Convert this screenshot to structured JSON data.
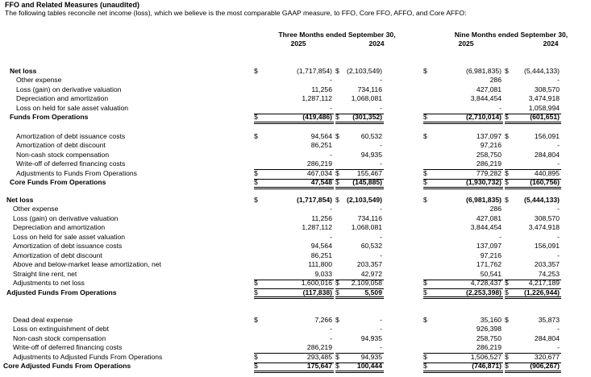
{
  "header": {
    "title": "FFO and Related Measures (unaudited)",
    "subtitle": "The following tables reconcile net income (loss), which we believe is the most comparable GAAP measure, to FFO, Core FFO, AFFO, and Core AFFO:",
    "groups": [
      "Three Months ended September 30,",
      "Nine Months ended September 30,"
    ],
    "years": [
      "2025",
      "2024",
      "2025",
      "2024"
    ]
  },
  "blocks": [
    {
      "rows": [
        {
          "label": "Net loss",
          "kind": "bold",
          "cells": [
            {
              "sign": "$",
              "value": "(1,717,854)"
            },
            {
              "sign": "$",
              "value": "(2,103,549)"
            },
            {
              "sign": "$",
              "value": "(6,981,835)"
            },
            {
              "sign": "$",
              "value": "(5,444,133)"
            }
          ]
        },
        {
          "label": "Other expense",
          "cells": [
            {
              "value": "-"
            },
            {
              "value": "-"
            },
            {
              "value": "286"
            },
            {
              "value": "-"
            }
          ]
        },
        {
          "label": "Loss (gain) on derivative valuation",
          "cells": [
            {
              "value": "11,256"
            },
            {
              "value": "734,116"
            },
            {
              "value": "427,081"
            },
            {
              "value": "308,570"
            }
          ]
        },
        {
          "label": "Depreciation and amortization",
          "cells": [
            {
              "value": "1,287,112"
            },
            {
              "value": "1,068,081"
            },
            {
              "value": "3,844,454"
            },
            {
              "value": "3,474,918"
            }
          ]
        },
        {
          "label": "Loss on held for sale asset valuation",
          "cells": [
            {
              "value": "-"
            },
            {
              "value": "-"
            },
            {
              "value": "-"
            },
            {
              "value": "1,058,994"
            }
          ]
        },
        {
          "label": "Funds From Operations",
          "kind": "total",
          "cells": [
            {
              "sign": "$",
              "value": "(419,486)"
            },
            {
              "sign": "$",
              "value": "(301,352)"
            },
            {
              "sign": "$",
              "value": "(2,710,014)"
            },
            {
              "sign": "$",
              "value": "(601,651)"
            }
          ]
        }
      ]
    },
    {
      "rows": [
        {
          "label": "Amortization of debt issuance costs",
          "cells": [
            {
              "sign": "$",
              "value": "94,564"
            },
            {
              "sign": "$",
              "value": "60,532"
            },
            {
              "sign": "$",
              "value": "137,097"
            },
            {
              "sign": "$",
              "value": "156,091"
            }
          ]
        },
        {
          "label": "Amortization of debt discount",
          "cells": [
            {
              "value": "86,251"
            },
            {
              "value": "-"
            },
            {
              "value": "97,216"
            },
            {
              "value": "-"
            }
          ]
        },
        {
          "label": "Non-cash stock compensation",
          "cells": [
            {
              "value": "-"
            },
            {
              "value": "94,935"
            },
            {
              "value": "258,750"
            },
            {
              "value": "284,804"
            }
          ]
        },
        {
          "label": "Write-off of deferred financing costs",
          "cells": [
            {
              "value": "286,219"
            },
            {
              "value": "-"
            },
            {
              "value": "286,219"
            },
            {
              "value": "-"
            }
          ]
        },
        {
          "label": "Adjustments to Funds From Operations",
          "kind": "sub",
          "cells": [
            {
              "sign": "$",
              "value": "467,034"
            },
            {
              "sign": "$",
              "value": "155,467"
            },
            {
              "sign": "$",
              "value": "779,282"
            },
            {
              "sign": "$",
              "value": "440,895"
            }
          ]
        },
        {
          "label": "Core Funds From Operations",
          "kind": "total",
          "cells": [
            {
              "sign": "$",
              "value": "47,548"
            },
            {
              "sign": "$",
              "value": "(145,885)"
            },
            {
              "sign": "$",
              "value": "(1,930,732)"
            },
            {
              "sign": "$",
              "value": "(160,756)"
            }
          ]
        }
      ]
    },
    {
      "rows": [
        {
          "label": "Net loss",
          "kind": "bold",
          "cells": [
            {
              "sign": "$",
              "value": "(1,717,854)"
            },
            {
              "sign": "$",
              "value": "(2,103,549)"
            },
            {
              "sign": "$",
              "value": "(6,981,835)"
            },
            {
              "sign": "$",
              "value": "(5,444,133)"
            }
          ]
        },
        {
          "label": "Other expense",
          "cells": [
            {
              "value": "-"
            },
            {
              "value": "-"
            },
            {
              "value": "286"
            },
            {
              "value": "-"
            }
          ]
        },
        {
          "label": "Loss (gain) on derivative valuation",
          "cells": [
            {
              "value": "11,256"
            },
            {
              "value": "734,116"
            },
            {
              "value": "427,081"
            },
            {
              "value": "308,570"
            }
          ]
        },
        {
          "label": "Depreciation and amortization",
          "cells": [
            {
              "value": "1,287,112"
            },
            {
              "value": "1,068,081"
            },
            {
              "value": "3,844,454"
            },
            {
              "value": "3,474,918"
            }
          ]
        },
        {
          "label": "Loss on held for sale asset valuation",
          "cells": [
            {
              "value": "-"
            },
            {
              "value": "-"
            },
            {
              "value": "-"
            },
            {
              "value": "-"
            }
          ]
        },
        {
          "label": "Amortization of debt issuance costs",
          "cells": [
            {
              "value": "94,564"
            },
            {
              "value": "60,532"
            },
            {
              "value": "137,097"
            },
            {
              "value": "156,091"
            }
          ]
        },
        {
          "label": "Amortization of debt discount",
          "cells": [
            {
              "value": "86,251"
            },
            {
              "value": "-"
            },
            {
              "value": "97,216"
            },
            {
              "value": "-"
            }
          ]
        },
        {
          "label": "Above and below-market lease amortization, net",
          "cells": [
            {
              "value": "111,800"
            },
            {
              "value": "203,357"
            },
            {
              "value": "171,762"
            },
            {
              "value": "203,357"
            }
          ]
        },
        {
          "label": "Straight line rent, net",
          "cells": [
            {
              "value": "9,033"
            },
            {
              "value": "42,972"
            },
            {
              "value": "50,541"
            },
            {
              "value": "74,253"
            }
          ]
        },
        {
          "label": "Adjustments to net loss",
          "kind": "sub",
          "cells": [
            {
              "sign": "$",
              "value": "1,600,016"
            },
            {
              "sign": "$",
              "value": "2,109,058"
            },
            {
              "sign": "$",
              "value": "4,728,437"
            },
            {
              "sign": "$",
              "value": "4,217,189"
            }
          ]
        },
        {
          "label": "Adjusted Funds From Operations",
          "kind": "total",
          "cells": [
            {
              "sign": "$",
              "value": "(117,838)"
            },
            {
              "sign": "$",
              "value": "5,509"
            },
            {
              "sign": "$",
              "value": "(2,253,398)"
            },
            {
              "sign": "$",
              "value": "(1,226,944)"
            }
          ]
        }
      ]
    },
    {
      "rows": [
        {
          "label": "Dead deal expense",
          "cells": [
            {
              "sign": "$",
              "value": "7,266"
            },
            {
              "sign": "$",
              "value": "-"
            },
            {
              "sign": "$",
              "value": "35,160"
            },
            {
              "sign": "$",
              "value": "35,873"
            }
          ]
        },
        {
          "label": "Loss on extinguishment of debt",
          "cells": [
            {
              "value": "-"
            },
            {
              "value": "-"
            },
            {
              "value": "926,398"
            },
            {
              "value": "-"
            }
          ]
        },
        {
          "label": "Non-cash stock compensation",
          "cells": [
            {
              "value": "-"
            },
            {
              "value": "94,935"
            },
            {
              "value": "258,750"
            },
            {
              "value": "284,804"
            }
          ]
        },
        {
          "label": "Write-off of deferred financing costs",
          "cells": [
            {
              "value": "286,219"
            },
            {
              "value": "-"
            },
            {
              "value": "286,219"
            },
            {
              "value": "-"
            }
          ]
        },
        {
          "label": "Adjustments to Adjusted Funds From Operations",
          "kind": "sub",
          "cells": [
            {
              "sign": "$",
              "value": "293,485"
            },
            {
              "sign": "$",
              "value": "94,935"
            },
            {
              "sign": "$",
              "value": "1,506,527"
            },
            {
              "sign": "$",
              "value": "320,677"
            }
          ]
        },
        {
          "label": "Core Adjusted Funds From Operations",
          "kind": "total",
          "cells": [
            {
              "sign": "$",
              "value": "175,647"
            },
            {
              "sign": "$",
              "value": "100,444"
            },
            {
              "sign": "$",
              "value": "(746,871)"
            },
            {
              "sign": "$",
              "value": "(906,267)"
            }
          ]
        }
      ]
    }
  ]
}
